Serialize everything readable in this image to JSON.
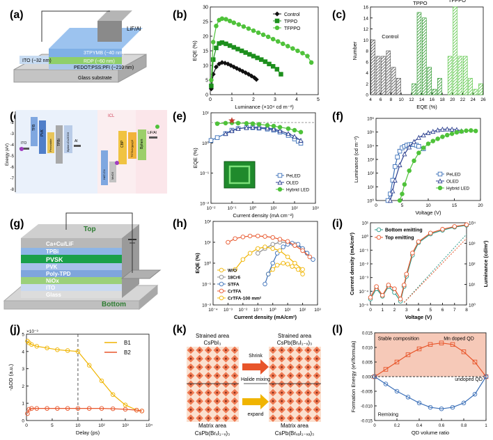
{
  "panel_labels": [
    "(a)",
    "(b)",
    "(c)",
    "(d)",
    "(e)",
    "(f)",
    "(g)",
    "(h)",
    "(i)",
    "(j)",
    "(k)",
    "(l)"
  ],
  "colors": {
    "black": "#111111",
    "green_dark": "#1d8f1d",
    "green_light": "#4fc23a",
    "blue": "#3a6fb8",
    "navy": "#2b3f8f",
    "orange": "#e8552a",
    "teal": "#2c9a8a",
    "yellow": "#f0b400"
  },
  "device_a": {
    "layers": [
      "LiF/Al",
      "3TPYMB (~40 nm)",
      "RDP (~60 nm)",
      "PEDOT:PSS:PFI (~210 nm)",
      "ITO (~32 nm)",
      "Glass substrate"
    ]
  },
  "device_g": {
    "layers": [
      "Ca+Cu/LiF",
      "TPBi",
      "PVSK",
      "PVK",
      "Poly-TPD",
      "NiOx",
      "ITO",
      "Glass"
    ],
    "top_label": "Top",
    "bottom_label": "Bottom"
  },
  "band_d": {
    "yaxis_label": "Energy (eV)",
    "ticks": [
      "-2",
      "-3",
      "-4",
      "-5",
      "-6",
      "-7",
      "-8"
    ],
    "labels": [
      "ITO",
      "TFB",
      "PVK",
      "Perovskite",
      "TPBi",
      "Bphen:Cs2CO3",
      "Al",
      "HAT-CN",
      "MoO3",
      "CBP",
      "TCTA:Ir(ppy)3",
      "Bphen",
      "LiF/Al",
      "ICL"
    ]
  },
  "chart_data": [
    {
      "id": "b",
      "type": "line",
      "xlabel": "Luminance (×10⁴ cd m⁻²)",
      "ylabel": "EQE (%)",
      "xlim": [
        0,
        5.5
      ],
      "ylim": [
        0,
        30
      ],
      "xticks": [
        "0",
        "1",
        "2",
        "3",
        "4",
        "5"
      ],
      "yticks": [
        "0",
        "5",
        "10",
        "15",
        "20",
        "25",
        "30"
      ],
      "legend": [
        "Control",
        "TPPO",
        "TFPPO"
      ],
      "series": [
        {
          "name": "Control",
          "marker": "diamond",
          "x": [
            0.05,
            0.15,
            0.3,
            0.45,
            0.6,
            0.75,
            0.9,
            1.05,
            1.2,
            1.35,
            1.5,
            1.65,
            1.8,
            1.95,
            2.1,
            2.25,
            2.35
          ],
          "y": [
            2,
            7,
            9.5,
            10.5,
            11,
            10.8,
            10.5,
            10,
            9.5,
            9,
            8.5,
            8,
            7.5,
            7,
            6.4,
            5.8,
            5.2
          ]
        },
        {
          "name": "TPPO",
          "marker": "square",
          "x": [
            0.05,
            0.15,
            0.3,
            0.45,
            0.6,
            0.8,
            1.0,
            1.2,
            1.4,
            1.6,
            1.8,
            2.0,
            2.2,
            2.4,
            2.6,
            2.8,
            3.0,
            3.2,
            3.4,
            3.6
          ],
          "y": [
            3,
            12,
            16,
            17.5,
            17.8,
            17.4,
            16.8,
            16.2,
            15.6,
            15,
            14.4,
            13.8,
            13.2,
            12.6,
            12,
            11.3,
            10.5,
            9.7,
            8.7,
            7
          ]
        },
        {
          "name": "TFPPO",
          "marker": "circle",
          "x": [
            0.05,
            0.15,
            0.3,
            0.45,
            0.6,
            0.8,
            1.0,
            1.2,
            1.45,
            1.7,
            1.95,
            2.2,
            2.45,
            2.7,
            2.95,
            3.2,
            3.45,
            3.7,
            3.95,
            4.2,
            4.45,
            4.7,
            4.95,
            5.15
          ],
          "y": [
            5,
            18,
            23.5,
            25.5,
            26,
            25.8,
            25.2,
            24.6,
            24,
            23.3,
            22.6,
            21.9,
            21.2,
            20.5,
            19.8,
            19,
            18.2,
            17.4,
            16.6,
            15.8,
            15,
            14.2,
            13.2,
            11
          ]
        }
      ]
    },
    {
      "id": "c",
      "type": "bar",
      "xlabel": "EQE (%)",
      "ylabel": "Number",
      "xlim": [
        4,
        26
      ],
      "ylim": [
        0,
        16
      ],
      "xticks": [
        "4",
        "6",
        "8",
        "10",
        "12",
        "14",
        "16",
        "18",
        "20",
        "22",
        "24",
        "26"
      ],
      "yticks": [
        "0",
        "2",
        "4",
        "6",
        "8",
        "10",
        "12",
        "14",
        "16"
      ],
      "annotations": [
        "Control",
        "TPPO",
        "TFPPO"
      ],
      "series": [
        {
          "name": "Control",
          "x": [
            4.5,
            5.5,
            6.5,
            7.5,
            8.5,
            9.5
          ],
          "values": [
            10,
            7,
            7,
            8,
            5,
            3
          ]
        },
        {
          "name": "TPPO",
          "x": [
            12.5,
            13.5,
            14.5,
            15.5,
            16.5,
            17.5
          ],
          "values": [
            2,
            15,
            14,
            5,
            1,
            3
          ]
        },
        {
          "name": "TFPPO",
          "x": [
            19.5,
            20.5,
            21.5,
            22.5,
            23.5,
            24.5,
            25.5
          ],
          "values": [
            7,
            16,
            7,
            7,
            3,
            1,
            2
          ]
        }
      ]
    },
    {
      "id": "e",
      "type": "line",
      "xlabel": "Current density (mA cm⁻²)",
      "ylabel": "EQE (%)",
      "xlim_log10": [
        -2,
        3
      ],
      "ylim_log10": [
        -2,
        2
      ],
      "xticks": [
        "10⁻²",
        "10⁻¹",
        "10⁰",
        "10¹",
        "10²",
        "10³"
      ],
      "yticks": [
        "10⁻²",
        "10⁻¹",
        "10⁰",
        "10¹"
      ],
      "legend": [
        "PeLED",
        "OLED",
        "Hybrid LED"
      ],
      "series": [
        {
          "name": "PeLED",
          "marker": "square",
          "x": [
            0.01,
            0.02,
            0.05,
            0.1,
            0.2,
            0.5,
            1,
            2,
            5,
            10,
            20,
            50,
            100,
            150,
            200
          ],
          "y": [
            6,
            8,
            12,
            17,
            20,
            22,
            22,
            21,
            19,
            17,
            14,
            10,
            7,
            5.5,
            4.5
          ]
        },
        {
          "name": "OLED",
          "marker": "triangle",
          "x": [
            0.05,
            0.1,
            0.2,
            0.5,
            1,
            2,
            5,
            10,
            20,
            50,
            100,
            200
          ],
          "y": [
            12,
            16,
            20,
            22,
            23,
            22,
            21,
            19,
            16,
            12,
            9,
            6
          ]
        },
        {
          "name": "Hybrid LED",
          "marker": "circle",
          "x": [
            0.02,
            0.05,
            0.1,
            0.2,
            0.5,
            1,
            2,
            5,
            10,
            20,
            50,
            100,
            200
          ],
          "y": [
            33,
            35,
            36,
            35,
            34,
            33,
            31,
            28,
            26,
            23,
            20,
            17,
            14
          ]
        }
      ],
      "star": {
        "x": 0.1,
        "y": 45
      },
      "dashed_level": 37
    },
    {
      "id": "f",
      "type": "line",
      "xlabel": "Voltage (V)",
      "ylabel": "Luminance (cd m⁻²)",
      "xlim": [
        0,
        22
      ],
      "ylim_log10": [
        0,
        6
      ],
      "xticks": [
        "0",
        "5",
        "10",
        "15",
        "20"
      ],
      "yticks": [
        "10⁰",
        "10¹",
        "10²",
        "10³",
        "10⁴",
        "10⁵",
        "10⁶"
      ],
      "legend": [
        "PeLED",
        "OLED",
        "Hybrid LED"
      ],
      "series": [
        {
          "name": "PeLED",
          "marker": "square",
          "x": [
            2.5,
            3,
            3.5,
            4,
            4.5,
            5,
            5.5,
            6,
            6.5,
            7,
            7.5,
            8,
            8.5,
            9,
            10
          ],
          "y": [
            1,
            3,
            30,
            300,
            1500,
            4000,
            7000,
            9000,
            11000,
            12000,
            12500,
            12000,
            11000,
            9000,
            6000
          ]
        },
        {
          "name": "OLED",
          "marker": "triangle",
          "x": [
            3,
            3.5,
            4,
            5,
            6,
            7,
            8,
            9,
            10,
            11,
            12,
            13,
            14,
            15,
            16,
            17,
            18
          ],
          "y": [
            1,
            5,
            30,
            400,
            2500,
            8000,
            20000,
            40000,
            60000,
            90000,
            110000,
            140000,
            160000,
            165000,
            160000,
            150000,
            120000
          ]
        },
        {
          "name": "Hybrid LED",
          "marker": "circle",
          "x": [
            5,
            5.5,
            6,
            7,
            8,
            9,
            10,
            11,
            12,
            13,
            14,
            15,
            16,
            17,
            18,
            19,
            20,
            21
          ],
          "y": [
            1,
            3,
            15,
            150,
            800,
            3000,
            7000,
            14000,
            22000,
            32000,
            45000,
            60000,
            75000,
            95000,
            110000,
            125000,
            130000,
            120000
          ]
        }
      ]
    },
    {
      "id": "h",
      "type": "line",
      "xlabel": "Current density (mA/cm²)",
      "ylabel": "EQE (%)",
      "xlim_log10": [
        -4,
        3
      ],
      "ylim_log10": [
        -2,
        2
      ],
      "xticks": [
        "10⁻⁴",
        "10⁻³",
        "10⁻²",
        "10⁻¹",
        "10⁰",
        "10¹",
        "10²",
        "10³"
      ],
      "yticks": [
        "10⁻²",
        "10⁻¹",
        "10⁰",
        "10¹",
        "10²"
      ],
      "legend": [
        "W/O",
        "18Cr6",
        "STFA",
        "CrTFA",
        "CrTFA-100 mm²"
      ],
      "series": [
        {
          "name": "W/O",
          "color": "#f0b400",
          "x": [
            0.5,
            1,
            2,
            5,
            10,
            20,
            50,
            100
          ],
          "y": [
            0.3,
            0.5,
            0.8,
            1.0,
            0.9,
            0.7,
            0.5,
            0.3
          ]
        },
        {
          "name": "18Cr6",
          "color": "#8a8a8a",
          "x": [
            0.1,
            0.3,
            1,
            3,
            10,
            30,
            100,
            200
          ],
          "y": [
            3,
            5,
            8,
            10,
            10,
            8,
            5,
            3
          ]
        },
        {
          "name": "STFA",
          "color": "#3a6fb8",
          "x": [
            0.3,
            0.5,
            1,
            2,
            5,
            10,
            20,
            50,
            100,
            200,
            500
          ],
          "y": [
            0.1,
            0.3,
            1,
            3,
            6,
            8,
            9,
            8,
            5,
            3,
            1.5
          ]
        },
        {
          "name": "CrTFA",
          "color": "#e8552a",
          "x": [
            0.001,
            0.003,
            0.01,
            0.03,
            0.1,
            0.3,
            1,
            3,
            10,
            30,
            100,
            300
          ],
          "y": [
            10,
            15,
            18,
            20,
            20,
            19,
            17,
            14,
            11,
            7,
            4,
            2
          ]
        },
        {
          "name": "CrTFA-100 mm²",
          "color": "#f0b400",
          "x": [
            0.003,
            0.01,
            0.03,
            0.1,
            0.3,
            1,
            3,
            10,
            30,
            100
          ],
          "y": [
            0.5,
            1.5,
            3,
            5,
            6,
            5,
            4,
            2,
            1,
            0.5
          ]
        }
      ]
    },
    {
      "id": "i",
      "type": "line",
      "xlabel": "Voltage (V)",
      "ylabel": "Current density (mA/cm²)",
      "ylabel2": "Luminance (cd/m²)",
      "xlim": [
        0,
        8
      ],
      "ylim_log10": [
        -5,
        1.6
      ],
      "y2lim_log10": [
        0,
        4
      ],
      "xticks": [
        "0",
        "1",
        "2",
        "3",
        "4",
        "5",
        "6",
        "7",
        "8"
      ],
      "yticks": [
        "10⁻⁵",
        "10⁻⁴",
        "10⁻³",
        "10⁻²",
        "10⁻¹",
        "10⁰",
        "10¹"
      ],
      "y2ticks": [
        "10⁰",
        "10¹",
        "10²",
        "10³",
        "10⁴"
      ],
      "legend": [
        "Bottom emitting",
        "Top emitting"
      ],
      "series": [
        {
          "name": "Bottom emitting",
          "x": [
            0,
            0.5,
            1,
            1.5,
            2,
            2.5,
            2.8,
            3,
            3.5,
            4,
            5,
            6,
            7,
            8
          ],
          "y": [
            3e-05,
            0.0002,
            5e-05,
            0.0003,
            0.0001,
            2e-05,
            0.0003,
            0.002,
            0.1,
            1,
            5,
            10,
            18,
            25
          ]
        },
        {
          "name": "Top emitting",
          "x": [
            0,
            0.5,
            1,
            1.5,
            2,
            2.5,
            2.8,
            3,
            3.5,
            4,
            5,
            6,
            7,
            8
          ],
          "y": [
            4e-05,
            0.0003,
            6e-05,
            0.0004,
            0.0002,
            3e-05,
            0.0004,
            0.003,
            0.15,
            1.2,
            6,
            12,
            20,
            28
          ]
        }
      ]
    },
    {
      "id": "j",
      "type": "line",
      "xlabel": "Delay (ps)",
      "ylabel": "-ΔOD (a.u.)",
      "exponent": "×10⁻³",
      "ylim": [
        0,
        5
      ],
      "xticks": [
        "0",
        "5",
        "10",
        "10²",
        "10³",
        "10⁴"
      ],
      "yticks": [
        "0",
        "1",
        "2",
        "3",
        "4",
        "5"
      ],
      "legend": [
        "B1",
        "B2"
      ],
      "series": [
        {
          "name": "B1",
          "x": [
            0.2,
            0.5,
            1,
            2,
            4,
            6,
            8,
            10,
            30,
            100,
            300,
            1000,
            3000,
            5000
          ],
          "y": [
            4.6,
            4.5,
            4.4,
            4.3,
            4.2,
            4.1,
            4.05,
            4.0,
            3.2,
            2.3,
            1.5,
            0.9,
            0.6,
            0.55
          ]
        },
        {
          "name": "B2",
          "x": [
            0.2,
            0.5,
            1,
            2,
            4,
            6,
            8,
            10,
            30,
            100,
            300,
            1000,
            3000,
            5000
          ],
          "y": [
            0.4,
            0.65,
            0.7,
            0.7,
            0.7,
            0.7,
            0.7,
            0.7,
            0.7,
            0.7,
            0.68,
            0.65,
            0.6,
            0.55
          ]
        }
      ]
    },
    {
      "id": "l",
      "type": "line",
      "xlabel": "QD volume ratio",
      "ylabel": "Formation Energy (eV/formula)",
      "xlim": [
        0,
        1
      ],
      "ylim": [
        -0.015,
        0.015
      ],
      "xticks": [
        "0",
        "0.2",
        "0.4",
        "0.6",
        "0.8",
        "1"
      ],
      "yticks": [
        "-0.015",
        "-0.010",
        "-0.005",
        "0.000",
        "0.005",
        "0.010",
        "0.015"
      ],
      "annotations": [
        "Stable composition",
        "Mn doped QD",
        "undoped QD",
        "Remixing"
      ],
      "series": [
        {
          "name": "Mn doped QD",
          "x": [
            0,
            0.1,
            0.2,
            0.3,
            0.4,
            0.5,
            0.6,
            0.7,
            0.8,
            0.9,
            1
          ],
          "y": [
            0,
            0.0025,
            0.005,
            0.0075,
            0.0095,
            0.011,
            0.0115,
            0.011,
            0.0085,
            0.005,
            0
          ]
        },
        {
          "name": "undoped QD",
          "x": [
            0,
            0.1,
            0.2,
            0.3,
            0.4,
            0.5,
            0.6,
            0.7,
            0.8,
            0.9,
            1
          ],
          "y": [
            0,
            -0.0025,
            -0.005,
            -0.007,
            -0.009,
            -0.0105,
            -0.011,
            -0.0105,
            -0.009,
            -0.006,
            0
          ]
        }
      ]
    }
  ],
  "scheme_k": {
    "top_left_title": "Strained area",
    "top_left_formula": "CsPbI₃",
    "top_right_title": "Strained area",
    "top_right_formula": "CsPb(BrₓI₁₋ₓ)₃",
    "bottom_left_title": "Matrix area",
    "bottom_left_formula": "CsPb(BrₓI₁₋ₓ)₃",
    "bottom_right_title": "Matrix area",
    "bottom_right_formula": "CsPb(BrₓₐI₁₋ₓₐ)₃",
    "arrow_top": "Shrink",
    "arrow_mid": "Halide mixing",
    "arrow_bottom": "expand"
  }
}
